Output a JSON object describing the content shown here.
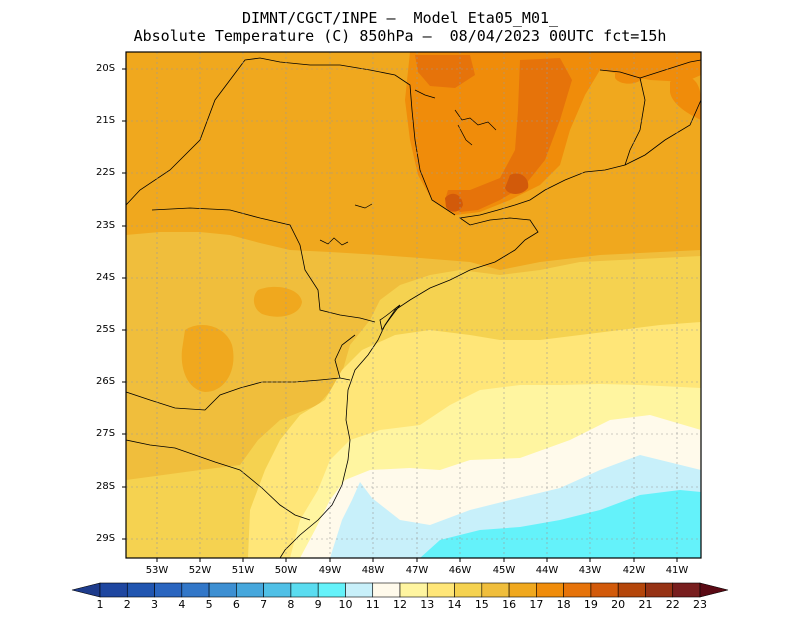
{
  "title": {
    "line1": "DIMNT/CGCT/INPE –  Model Eta05_M01_",
    "line2": "Absolute Temperature (C) 850hPa –  08/04/2023 00UTC fct=15h"
  },
  "map": {
    "lat_labels": [
      "20S",
      "21S",
      "22S",
      "23S",
      "24S",
      "25S",
      "26S",
      "27S",
      "28S",
      "29S"
    ],
    "lon_labels": [
      "53W",
      "52W",
      "51W",
      "50W",
      "49W",
      "48W",
      "47W",
      "46W",
      "45W",
      "44W",
      "43W",
      "42W",
      "41W"
    ]
  },
  "colorbar": {
    "labels": [
      "1",
      "2",
      "3",
      "4",
      "5",
      "6",
      "7",
      "8",
      "9",
      "10",
      "11",
      "12",
      "13",
      "14",
      "15",
      "16",
      "17",
      "18",
      "19",
      "20",
      "21",
      "22",
      "23"
    ],
    "colors": [
      "#1e3c8c",
      "#1e46a0",
      "#2055b0",
      "#2a65bf",
      "#3277c8",
      "#3d8fd2",
      "#46a7dc",
      "#50c0e6",
      "#5adcf0",
      "#64f2fa",
      "#c8f0fa",
      "#fffaeb",
      "#fff5a0",
      "#ffe678",
      "#f5d250",
      "#f0be3c",
      "#f0a81e",
      "#f08c0a",
      "#e6730a",
      "#d25a0a",
      "#b4460a",
      "#963214",
      "#781e1e",
      "#5a0a14"
    ]
  }
}
